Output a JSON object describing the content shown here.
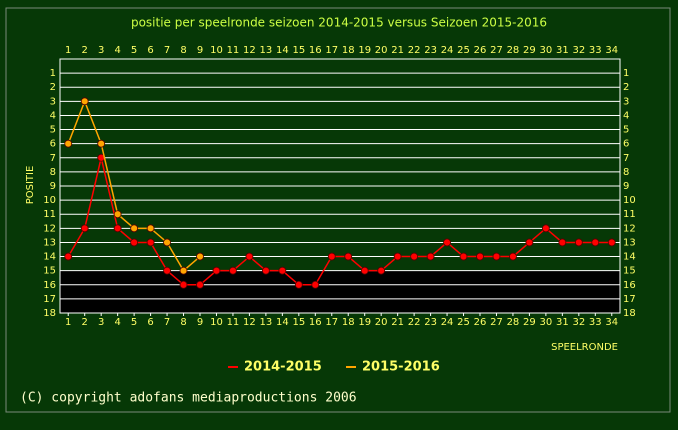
{
  "chart_data": {
    "type": "line",
    "title": "positie per speelronde seizoen 2014-2015 versus Seizoen 2015-2016",
    "x_label": "SPEELRONDE",
    "y_label": "POSITIE",
    "x": [
      1,
      2,
      3,
      4,
      5,
      6,
      7,
      8,
      9,
      10,
      11,
      12,
      13,
      14,
      15,
      16,
      17,
      18,
      19,
      20,
      21,
      22,
      23,
      24,
      25,
      26,
      27,
      28,
      29,
      30,
      31,
      32,
      33,
      34
    ],
    "series": [
      {
        "name": "2014-2015",
        "color": "#ff0000",
        "values": [
          14,
          12,
          7,
          12,
          13,
          13,
          15,
          16,
          16,
          15,
          15,
          14,
          15,
          15,
          16,
          16,
          14,
          14,
          15,
          15,
          14,
          14,
          14,
          13,
          14,
          14,
          14,
          14,
          13,
          12,
          13,
          13,
          13,
          13
        ]
      },
      {
        "name": "2015-2016",
        "color": "#ffa500",
        "values": [
          6,
          3,
          6,
          11,
          12,
          12,
          13,
          15,
          14,
          null,
          null,
          null,
          null,
          null,
          null,
          null,
          null,
          null,
          null,
          null,
          null,
          null,
          null,
          null,
          null,
          null,
          null,
          null,
          null,
          null,
          null,
          null,
          null,
          null
        ]
      }
    ],
    "xlim": [
      0.5,
      34.5
    ],
    "xticks": [
      1,
      2,
      3,
      4,
      5,
      6,
      7,
      8,
      9,
      10,
      11,
      12,
      13,
      14,
      15,
      16,
      17,
      18,
      19,
      20,
      21,
      22,
      23,
      24,
      25,
      26,
      27,
      28,
      29,
      30,
      31,
      32,
      33,
      34
    ],
    "ylim": [
      18,
      0
    ],
    "yticks": [
      1,
      2,
      3,
      4,
      5,
      6,
      7,
      8,
      9,
      10,
      11,
      12,
      13,
      14,
      15,
      16,
      17,
      18
    ],
    "grid": true,
    "footer": "(C) copyright adofans mediaproductions 2006"
  }
}
